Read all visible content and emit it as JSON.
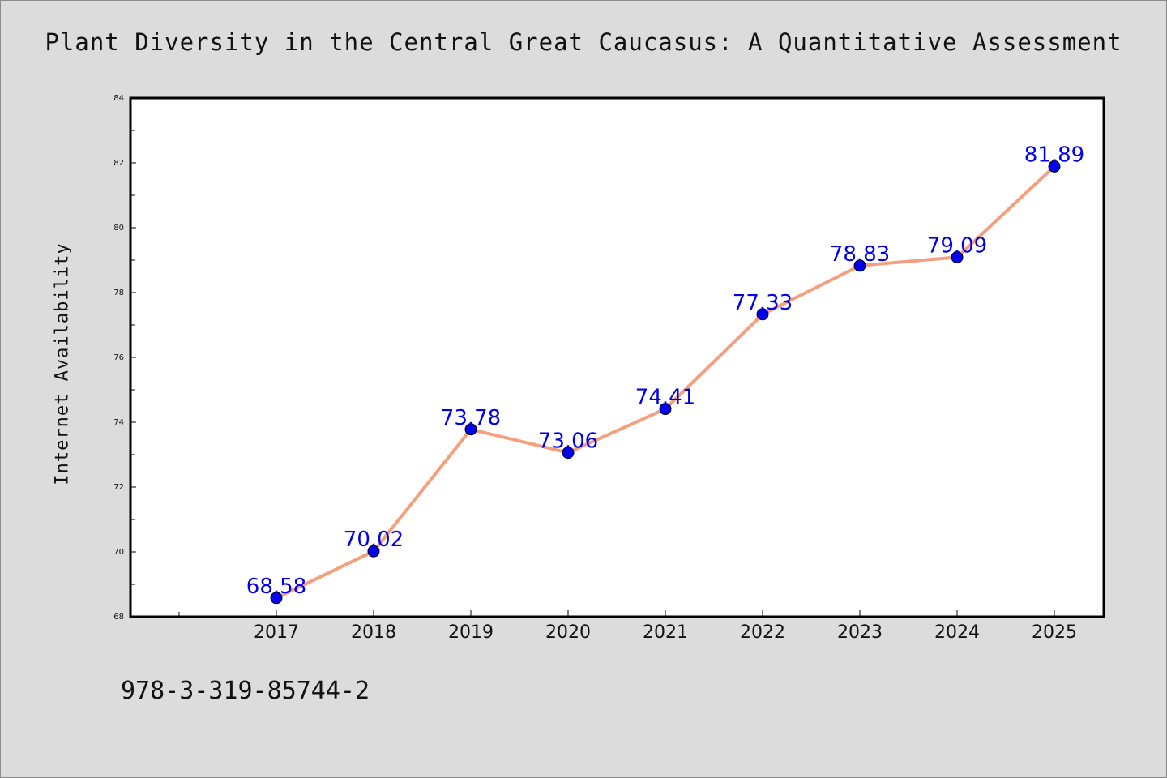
{
  "chart_data": {
    "type": "line",
    "title": "Plant Diversity in the Central Great Caucasus: A Quantitative Assessment",
    "xlabel": "",
    "ylabel": "Internet Availability",
    "categories": [
      "2017",
      "2018",
      "2019",
      "2020",
      "2021",
      "2022",
      "2023",
      "2024",
      "2025"
    ],
    "values": [
      68.58,
      70.02,
      73.78,
      73.06,
      74.41,
      77.33,
      78.83,
      79.09,
      81.89
    ],
    "data_labels": [
      "68.58",
      "70.02",
      "73.78",
      "73.06",
      "74.41",
      "77.33",
      "78.83",
      "79.09",
      "81.89"
    ],
    "ylim": [
      68,
      84
    ],
    "yticks": [
      "68",
      "70",
      "72",
      "74",
      "76",
      "78",
      "80",
      "82",
      "84"
    ],
    "grid": false,
    "legend": "none",
    "colors": {
      "line": "#f4a07e",
      "marker": "#0000ee",
      "label": "#0000ee",
      "background": "#dcdcdc",
      "plot_area": "#ffffff"
    }
  },
  "footer": {
    "isbn": "978-3-319-85744-2"
  }
}
